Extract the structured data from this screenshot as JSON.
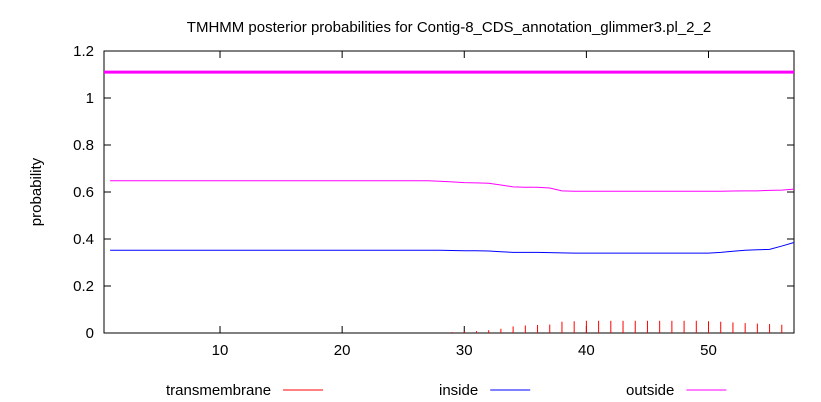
{
  "chart_data": {
    "type": "line",
    "title": "TMHMM posterior probabilities for Contig-8_CDS_annotation_glimmer3.pl_2_2",
    "xlabel": "",
    "ylabel": "probability",
    "xlim": [
      0.5,
      57
    ],
    "ylim": [
      0,
      1.2
    ],
    "xticks": [
      10,
      20,
      30,
      40,
      50
    ],
    "yticks": [
      0,
      0.2,
      0.4,
      0.6,
      0.8,
      1,
      1.2
    ],
    "ytick_labels": [
      "0",
      "0.2",
      "0.4",
      "0.6",
      "0.8",
      "1",
      "1.2"
    ],
    "legend_position": "bottom",
    "grid": false,
    "topology_band": {
      "y": 1.11,
      "color": "#ff00ff",
      "label": "outside"
    },
    "series": [
      {
        "name": "transmembrane",
        "style": "impulses",
        "color": "#ff0000",
        "x": [
          29,
          30,
          31,
          32,
          33,
          34,
          35,
          36,
          37,
          38,
          39,
          40,
          41,
          42,
          43,
          44,
          45,
          46,
          47,
          48,
          49,
          50,
          51,
          52,
          53,
          54,
          55,
          56
        ],
        "y": [
          0.004,
          0.006,
          0.008,
          0.012,
          0.018,
          0.028,
          0.032,
          0.034,
          0.036,
          0.048,
          0.05,
          0.052,
          0.052,
          0.052,
          0.052,
          0.052,
          0.052,
          0.052,
          0.052,
          0.052,
          0.052,
          0.05,
          0.048,
          0.045,
          0.042,
          0.04,
          0.038,
          0.035
        ]
      },
      {
        "name": "inside",
        "style": "line",
        "color": "#0000ff",
        "x": [
          1,
          5,
          10,
          15,
          20,
          25,
          28,
          29,
          30,
          31,
          32,
          33,
          34,
          35,
          36,
          37,
          38,
          39,
          40,
          41,
          42,
          43,
          44,
          45,
          46,
          47,
          48,
          49,
          50,
          51,
          52,
          53,
          54,
          55,
          56,
          57
        ],
        "y": [
          0.352,
          0.352,
          0.352,
          0.352,
          0.352,
          0.352,
          0.352,
          0.351,
          0.35,
          0.35,
          0.349,
          0.346,
          0.343,
          0.343,
          0.343,
          0.342,
          0.341,
          0.34,
          0.34,
          0.34,
          0.34,
          0.34,
          0.34,
          0.34,
          0.34,
          0.34,
          0.34,
          0.34,
          0.34,
          0.343,
          0.348,
          0.352,
          0.354,
          0.356,
          0.37,
          0.385
        ]
      },
      {
        "name": "outside",
        "style": "line",
        "color": "#ff00ff",
        "x": [
          1,
          5,
          10,
          15,
          20,
          25,
          27,
          28,
          29,
          30,
          31,
          32,
          33,
          34,
          35,
          36,
          37,
          38,
          39,
          40,
          41,
          42,
          43,
          44,
          45,
          46,
          47,
          48,
          49,
          50,
          51,
          52,
          53,
          54,
          55,
          56,
          57
        ],
        "y": [
          0.648,
          0.648,
          0.648,
          0.648,
          0.648,
          0.648,
          0.648,
          0.646,
          0.643,
          0.64,
          0.639,
          0.637,
          0.63,
          0.622,
          0.62,
          0.62,
          0.617,
          0.605,
          0.603,
          0.603,
          0.603,
          0.603,
          0.603,
          0.603,
          0.603,
          0.603,
          0.603,
          0.603,
          0.603,
          0.603,
          0.603,
          0.604,
          0.605,
          0.605,
          0.607,
          0.608,
          0.612
        ]
      }
    ]
  }
}
